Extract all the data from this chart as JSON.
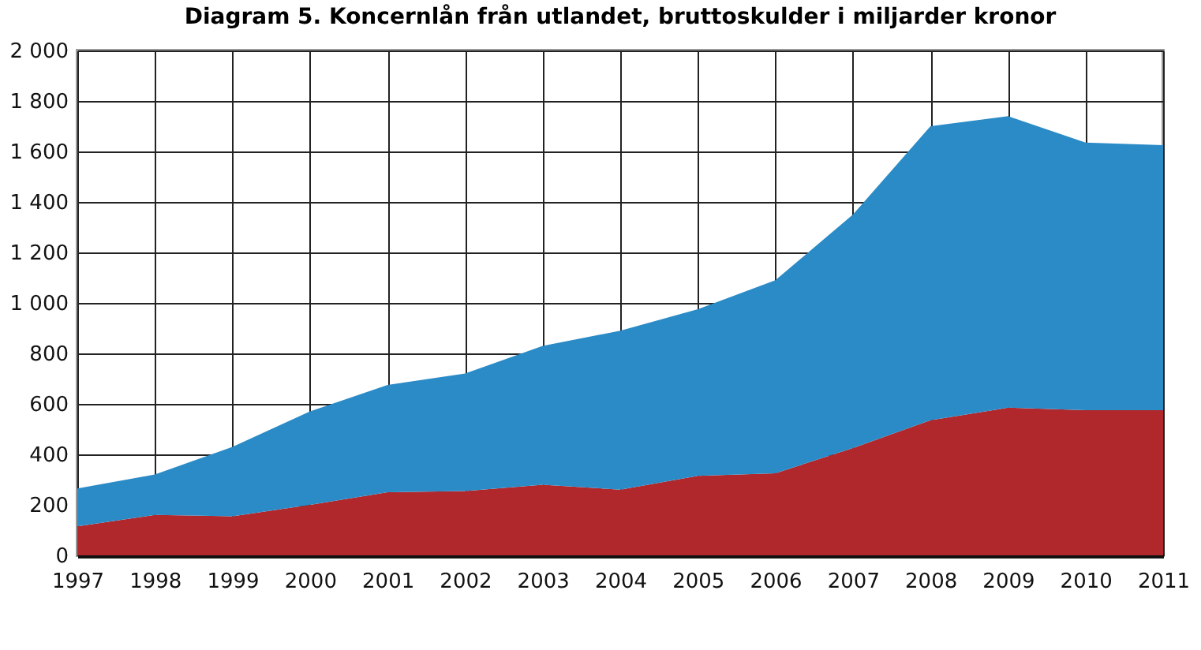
{
  "chart_data": {
    "type": "area",
    "title": "Diagram 5. Koncernlån från utlandet, bruttoskulder i miljarder kronor",
    "stacked": true,
    "categories": [
      "1997",
      "1998",
      "1999",
      "2000",
      "2001",
      "2002",
      "2003",
      "2004",
      "2005",
      "2006",
      "2007",
      "2008",
      "2009",
      "2010",
      "2011"
    ],
    "series": [
      {
        "color": "#b0282c",
        "values": [
          115,
          160,
          155,
          200,
          250,
          255,
          280,
          260,
          315,
          325,
          425,
          535,
          585,
          575,
          575
        ]
      },
      {
        "color": "#2a8bc7",
        "values": [
          150,
          160,
          275,
          370,
          425,
          465,
          550,
          630,
          660,
          765,
          925,
          1165,
          1155,
          1060,
          1050
        ]
      }
    ],
    "ylim": [
      0,
      2000
    ],
    "yticks": [
      0,
      200,
      400,
      600,
      800,
      {
        "value": 1000,
        "label": "1 000"
      },
      {
        "value": 1200,
        "label": "1 200"
      },
      {
        "value": 1400,
        "label": "1 400"
      },
      {
        "value": 1600,
        "label": "1 600"
      },
      {
        "value": 1800,
        "label": "1 800"
      },
      {
        "value": 2000,
        "label": "2 000"
      }
    ],
    "grid": true,
    "legend": false
  }
}
